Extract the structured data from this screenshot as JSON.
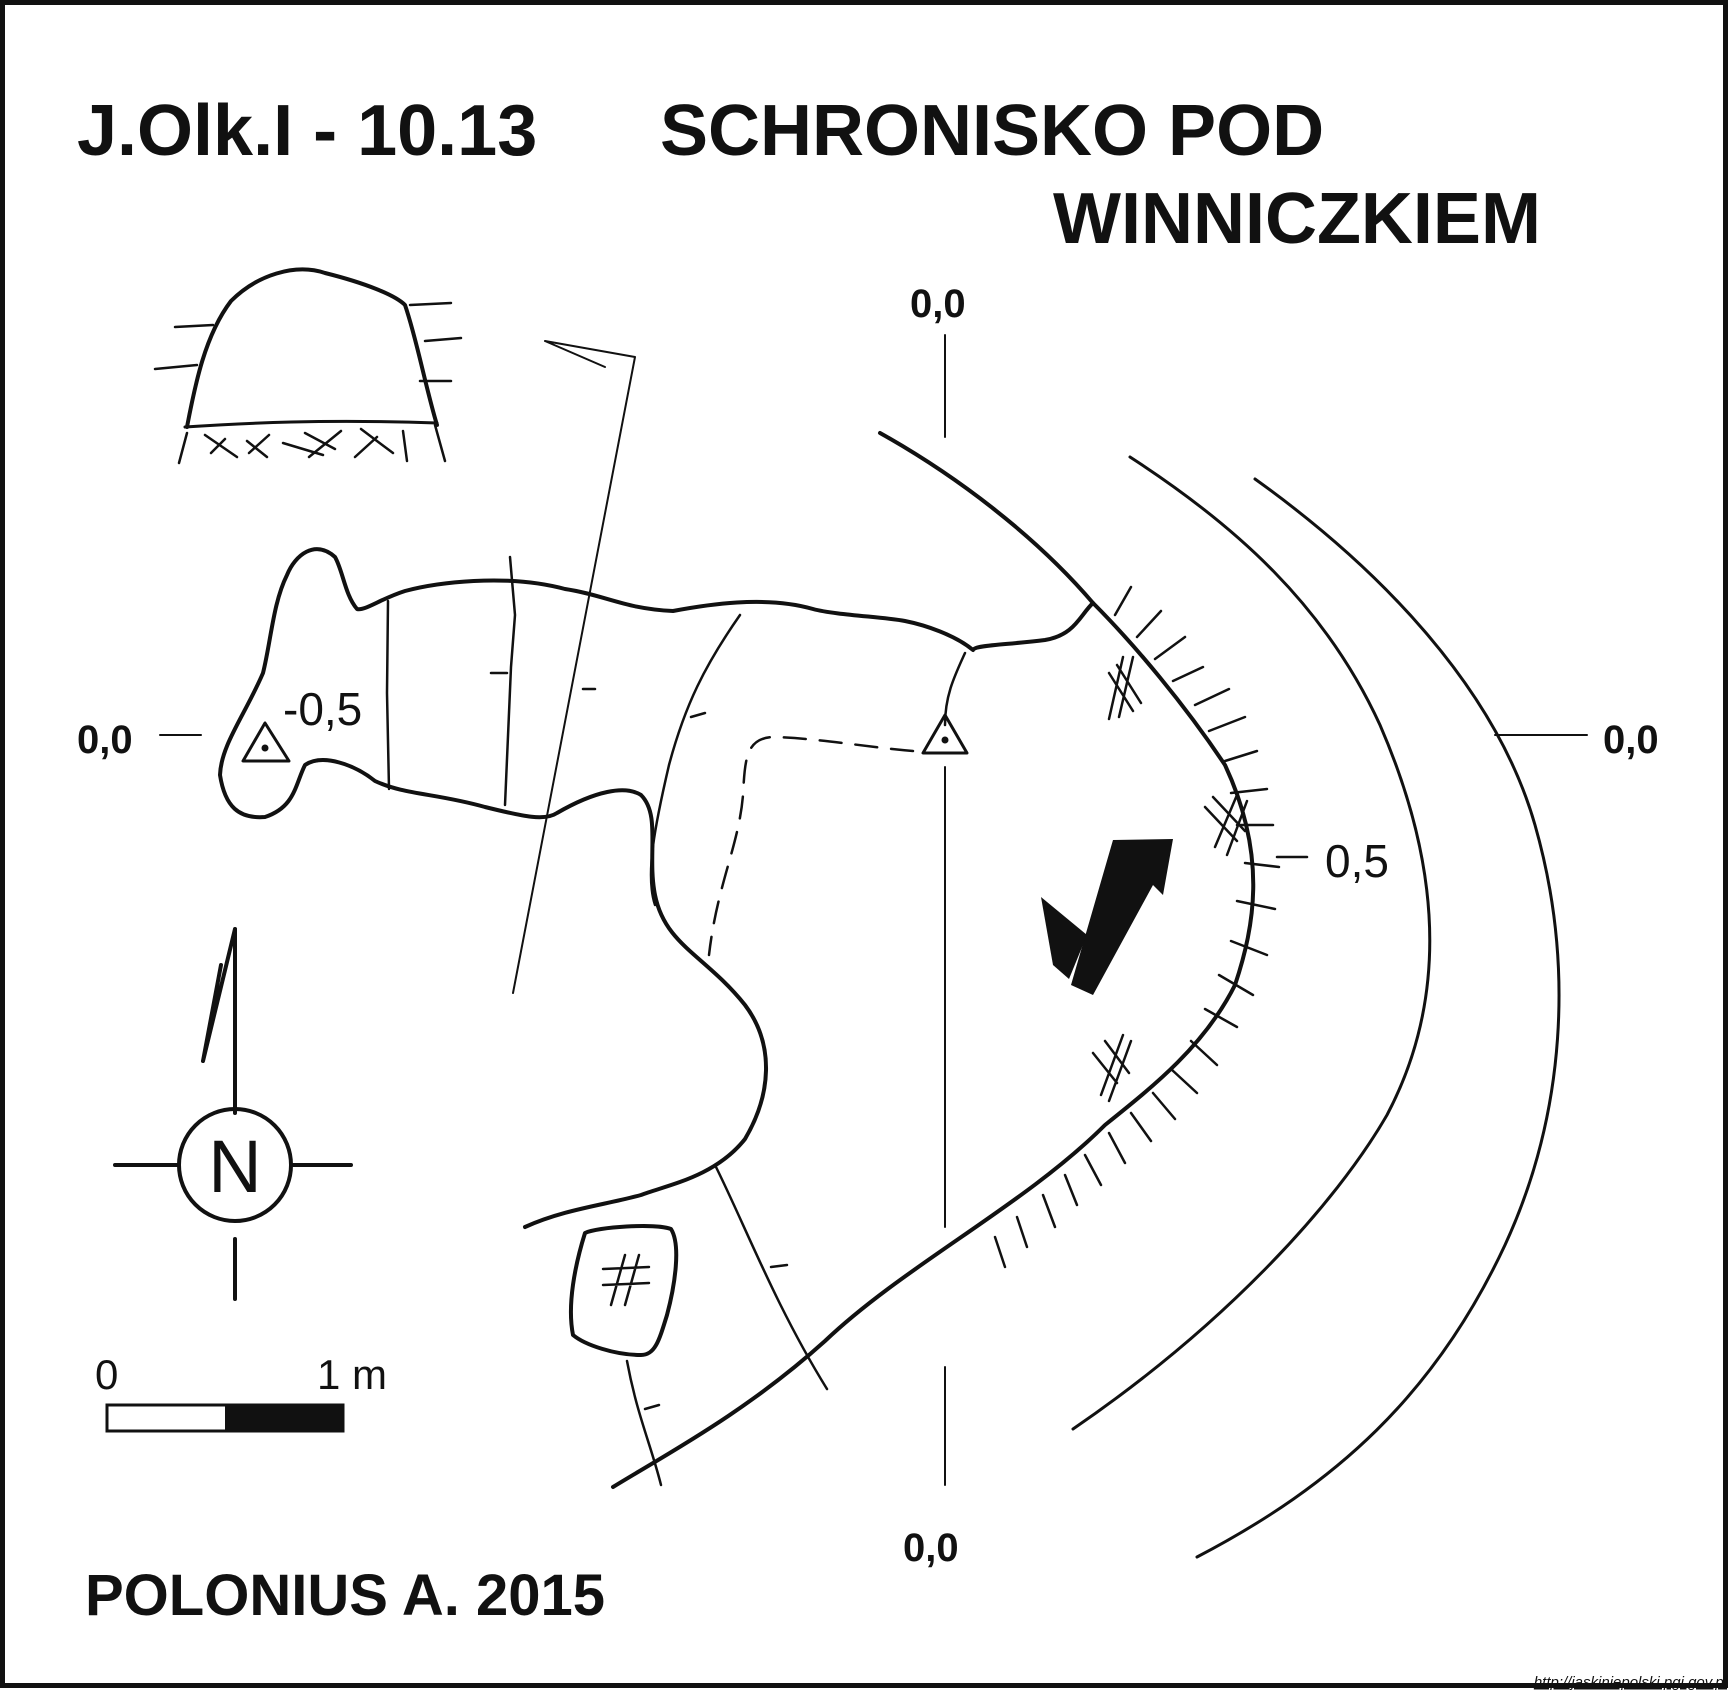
{
  "title": {
    "code": "J.Olk.I - 10.13",
    "name_line1": "SCHRONISKO POD",
    "name_line2": "WINNICZKIEM"
  },
  "author": "POLONIUS A. 2015",
  "source_url": "http://jaskiniepolski.pgi.gov.pl",
  "profile_markers": {
    "top": "0,0",
    "bottom": "0,0",
    "left": "0,0",
    "right": "0,0"
  },
  "depth_labels": {
    "left_point": "-0,5",
    "edge": "0,5"
  },
  "compass": {
    "label": "N"
  },
  "scale_bar": {
    "start_label": "0",
    "end_label": "1 m"
  },
  "colors": {
    "ink": "#111111",
    "paper": "#ffffff"
  }
}
